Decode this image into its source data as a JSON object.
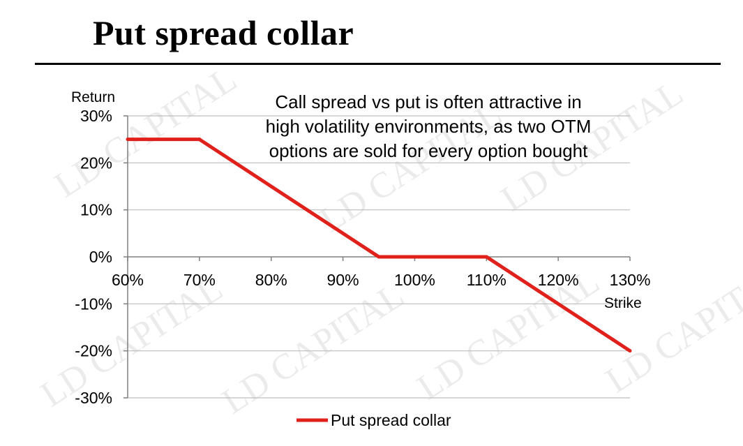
{
  "slide": {
    "title": "Put spread collar",
    "watermark_text": "LD CAPITAL"
  },
  "chart_data": {
    "type": "line",
    "xlabel": "Strike",
    "ylabel": "Return",
    "x_ticks": [
      "60%",
      "70%",
      "80%",
      "90%",
      "100%",
      "110%",
      "120%",
      "130%"
    ],
    "y_ticks": [
      "30%",
      "20%",
      "10%",
      "0%",
      "-10%",
      "-20%",
      "-30%"
    ],
    "xlim": [
      60,
      130
    ],
    "ylim": [
      -30,
      30
    ],
    "grid": "horizontal",
    "annotation": [
      "Call spread vs put is often attractive in",
      "high volatility environments, as two OTM",
      "options are sold for every option bought"
    ],
    "legend_position": "bottom",
    "series": [
      {
        "name": "Put spread collar",
        "color": "#e0211b",
        "x": [
          60,
          70,
          95,
          110,
          130
        ],
        "y": [
          25,
          25,
          0,
          0,
          -20
        ]
      }
    ]
  }
}
